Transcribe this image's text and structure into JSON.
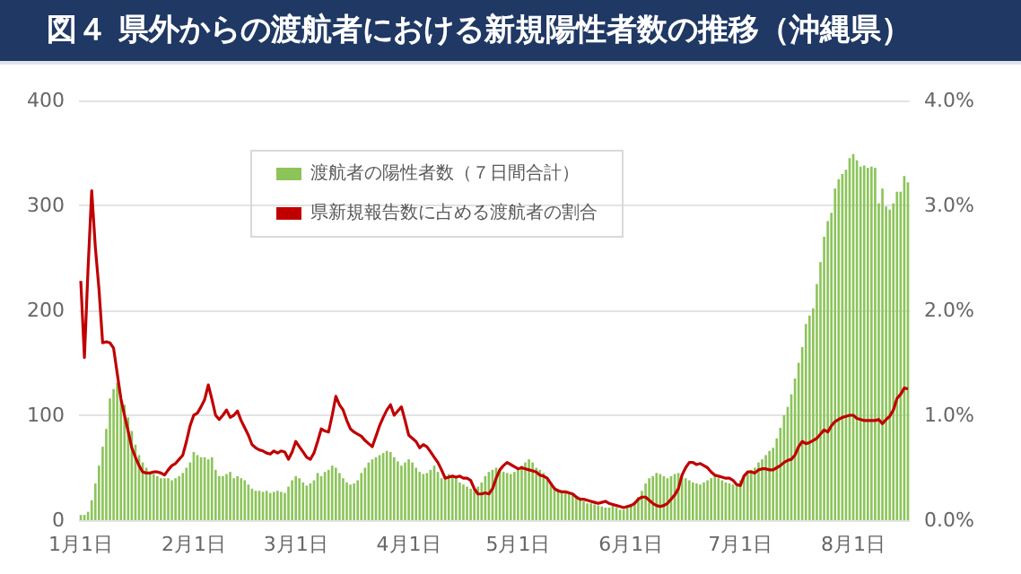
{
  "chart_data": {
    "type": "bar",
    "title": "図４ 県外からの渡航者における新規陽性者数の推移（沖縄県）",
    "categories": [
      "1月1日",
      null,
      null,
      null,
      null,
      null,
      null,
      null,
      null,
      null,
      null,
      null,
      null,
      null,
      null,
      null,
      null,
      null,
      null,
      null,
      null,
      null,
      null,
      null,
      null,
      null,
      null,
      null,
      null,
      null,
      null,
      "2月1日",
      null,
      null,
      null,
      null,
      null,
      null,
      null,
      null,
      null,
      null,
      null,
      null,
      null,
      null,
      null,
      null,
      null,
      null,
      null,
      null,
      null,
      null,
      null,
      null,
      null,
      null,
      null,
      "3月1日",
      null,
      null,
      null,
      null,
      null,
      null,
      null,
      null,
      null,
      null,
      null,
      null,
      null,
      null,
      null,
      null,
      null,
      null,
      null,
      null,
      null,
      null,
      null,
      null,
      null,
      null,
      null,
      null,
      null,
      null,
      "4月1日",
      null,
      null,
      null,
      null,
      null,
      null,
      null,
      null,
      null,
      null,
      null,
      null,
      null,
      null,
      null,
      null,
      null,
      null,
      null,
      null,
      null,
      null,
      null,
      null,
      null,
      null,
      null,
      null,
      null,
      "5月1日",
      null,
      null,
      null,
      null,
      null,
      null,
      null,
      null,
      null,
      null,
      null,
      null,
      null,
      null,
      null,
      null,
      null,
      null,
      null,
      null,
      null,
      null,
      null,
      null,
      null,
      null,
      null,
      null,
      null,
      null,
      "6月1日",
      null,
      null,
      null,
      null,
      null,
      null,
      null,
      null,
      null,
      null,
      null,
      null,
      null,
      null,
      null,
      null,
      null,
      null,
      null,
      null,
      null,
      null,
      null,
      null,
      null,
      null,
      null,
      null,
      null,
      "7月1日",
      null,
      null,
      null,
      null,
      null,
      null,
      null,
      null,
      null,
      null,
      null,
      null,
      null,
      null,
      null,
      null,
      null,
      null,
      null,
      null,
      null,
      null,
      null,
      null,
      null,
      null,
      null,
      null,
      null,
      null,
      "8月1日",
      null,
      null,
      null,
      null,
      null,
      null,
      null,
      null,
      null,
      null,
      null,
      null,
      null,
      null,
      null
    ],
    "series": [
      {
        "name": "渡航者の陽性者数（７日間合計）",
        "color": "#8cc45a",
        "values": [
          5,
          5,
          8,
          19,
          35,
          52,
          70,
          87,
          116,
          125,
          131,
          119,
          110,
          98,
          85,
          72,
          62,
          55,
          50,
          46,
          44,
          42,
          40,
          40,
          40,
          38,
          40,
          42,
          45,
          50,
          55,
          65,
          62,
          60,
          60,
          58,
          60,
          48,
          42,
          42,
          44,
          46,
          40,
          42,
          40,
          38,
          34,
          30,
          28,
          28,
          27,
          28,
          26,
          27,
          28,
          27,
          26,
          32,
          38,
          42,
          40,
          36,
          33,
          35,
          38,
          45,
          42,
          46,
          48,
          52,
          50,
          45,
          40,
          36,
          34,
          35,
          38,
          45,
          50,
          55,
          58,
          60,
          62,
          64,
          66,
          65,
          60,
          56,
          52,
          55,
          58,
          55,
          50,
          46,
          44,
          45,
          48,
          52,
          46,
          40,
          42,
          44,
          43,
          40,
          36,
          34,
          32,
          30,
          30,
          32,
          36,
          42,
          46,
          48,
          50,
          48,
          46,
          45,
          44,
          46,
          50,
          52,
          55,
          58,
          55,
          50,
          48,
          45,
          40,
          36,
          32,
          30,
          28,
          26,
          25,
          24,
          22,
          20,
          18,
          16,
          16,
          15,
          14,
          13,
          12,
          12,
          14,
          12,
          10,
          10,
          12,
          15,
          18,
          22,
          28,
          35,
          40,
          42,
          45,
          44,
          42,
          40,
          42,
          44,
          45,
          42,
          40,
          38,
          36,
          35,
          34,
          36,
          38,
          40,
          42,
          40,
          38,
          36,
          35,
          34,
          35,
          38,
          42,
          46,
          48,
          50,
          55,
          58,
          62,
          66,
          69,
          78,
          88,
          100,
          108,
          120,
          135,
          150,
          165,
          187,
          195,
          202,
          225,
          246,
          270,
          285,
          293,
          316,
          325,
          330,
          334,
          345,
          349,
          343,
          337,
          338,
          336,
          337,
          336,
          302,
          316,
          299,
          296,
          302,
          313,
          313,
          328,
          322
        ]
      },
      {
        "name": "県新規報告数に占める渡航者の割合",
        "type": "line",
        "axis": "y2",
        "color": "#c00000",
        "values": [
          2.28,
          1.55,
          2.4,
          3.14,
          2.6,
          2.2,
          1.69,
          1.7,
          1.69,
          1.64,
          1.4,
          1.16,
          1.0,
          0.85,
          0.69,
          0.6,
          0.52,
          0.46,
          0.45,
          0.45,
          0.46,
          0.46,
          0.45,
          0.43,
          0.48,
          0.52,
          0.54,
          0.58,
          0.62,
          0.75,
          0.9,
          1.0,
          1.02,
          1.08,
          1.15,
          1.29,
          1.15,
          1.0,
          0.96,
          1.0,
          1.05,
          0.98,
          1.0,
          1.04,
          0.95,
          0.88,
          0.81,
          0.72,
          0.69,
          0.67,
          0.66,
          0.64,
          0.63,
          0.66,
          0.64,
          0.66,
          0.65,
          0.58,
          0.65,
          0.75,
          0.7,
          0.65,
          0.6,
          0.58,
          0.64,
          0.75,
          0.87,
          0.85,
          0.84,
          1.0,
          1.18,
          1.1,
          1.05,
          0.95,
          0.87,
          0.84,
          0.82,
          0.8,
          0.76,
          0.73,
          0.7,
          0.8,
          0.9,
          0.98,
          1.05,
          1.1,
          1.0,
          1.04,
          1.08,
          0.95,
          0.81,
          0.78,
          0.75,
          0.69,
          0.72,
          0.7,
          0.65,
          0.6,
          0.55,
          0.48,
          0.4,
          0.41,
          0.42,
          0.41,
          0.42,
          0.4,
          0.4,
          0.38,
          0.3,
          0.25,
          0.25,
          0.26,
          0.25,
          0.3,
          0.4,
          0.48,
          0.52,
          0.55,
          0.53,
          0.51,
          0.49,
          0.5,
          0.49,
          0.48,
          0.47,
          0.46,
          0.43,
          0.42,
          0.4,
          0.35,
          0.3,
          0.28,
          0.27,
          0.27,
          0.26,
          0.25,
          0.22,
          0.2,
          0.2,
          0.19,
          0.18,
          0.17,
          0.16,
          0.17,
          0.18,
          0.16,
          0.15,
          0.14,
          0.13,
          0.12,
          0.13,
          0.14,
          0.16,
          0.2,
          0.22,
          0.22,
          0.19,
          0.16,
          0.14,
          0.13,
          0.14,
          0.16,
          0.2,
          0.24,
          0.3,
          0.43,
          0.5,
          0.55,
          0.55,
          0.53,
          0.54,
          0.52,
          0.5,
          0.46,
          0.43,
          0.42,
          0.41,
          0.4,
          0.4,
          0.38,
          0.34,
          0.33,
          0.42,
          0.46,
          0.46,
          0.45,
          0.48,
          0.49,
          0.49,
          0.48,
          0.48,
          0.5,
          0.52,
          0.55,
          0.57,
          0.58,
          0.62,
          0.7,
          0.75,
          0.73,
          0.74,
          0.76,
          0.78,
          0.82,
          0.86,
          0.84,
          0.9,
          0.94,
          0.96,
          0.98,
          0.99,
          1.0,
          1.0,
          0.97,
          0.96,
          0.95,
          0.95,
          0.95,
          0.95,
          0.96,
          0.92,
          0.96,
          0.99,
          1.05,
          1.16,
          1.2,
          1.26,
          1.25
        ]
      }
    ],
    "ylim": [
      0,
      400
    ],
    "yticks": [
      0,
      100,
      200,
      300,
      400
    ],
    "y2lim": [
      0,
      4
    ],
    "y2ticks": [
      {
        "value": 0,
        "label": "0.0%"
      },
      {
        "value": 1,
        "label": "1.0%"
      },
      {
        "value": 2,
        "label": "2.0%"
      },
      {
        "value": 3,
        "label": "3.0%"
      },
      {
        "value": 4,
        "label": "4.0%"
      }
    ],
    "grid": "y",
    "legend": "top",
    "marker": "none"
  }
}
